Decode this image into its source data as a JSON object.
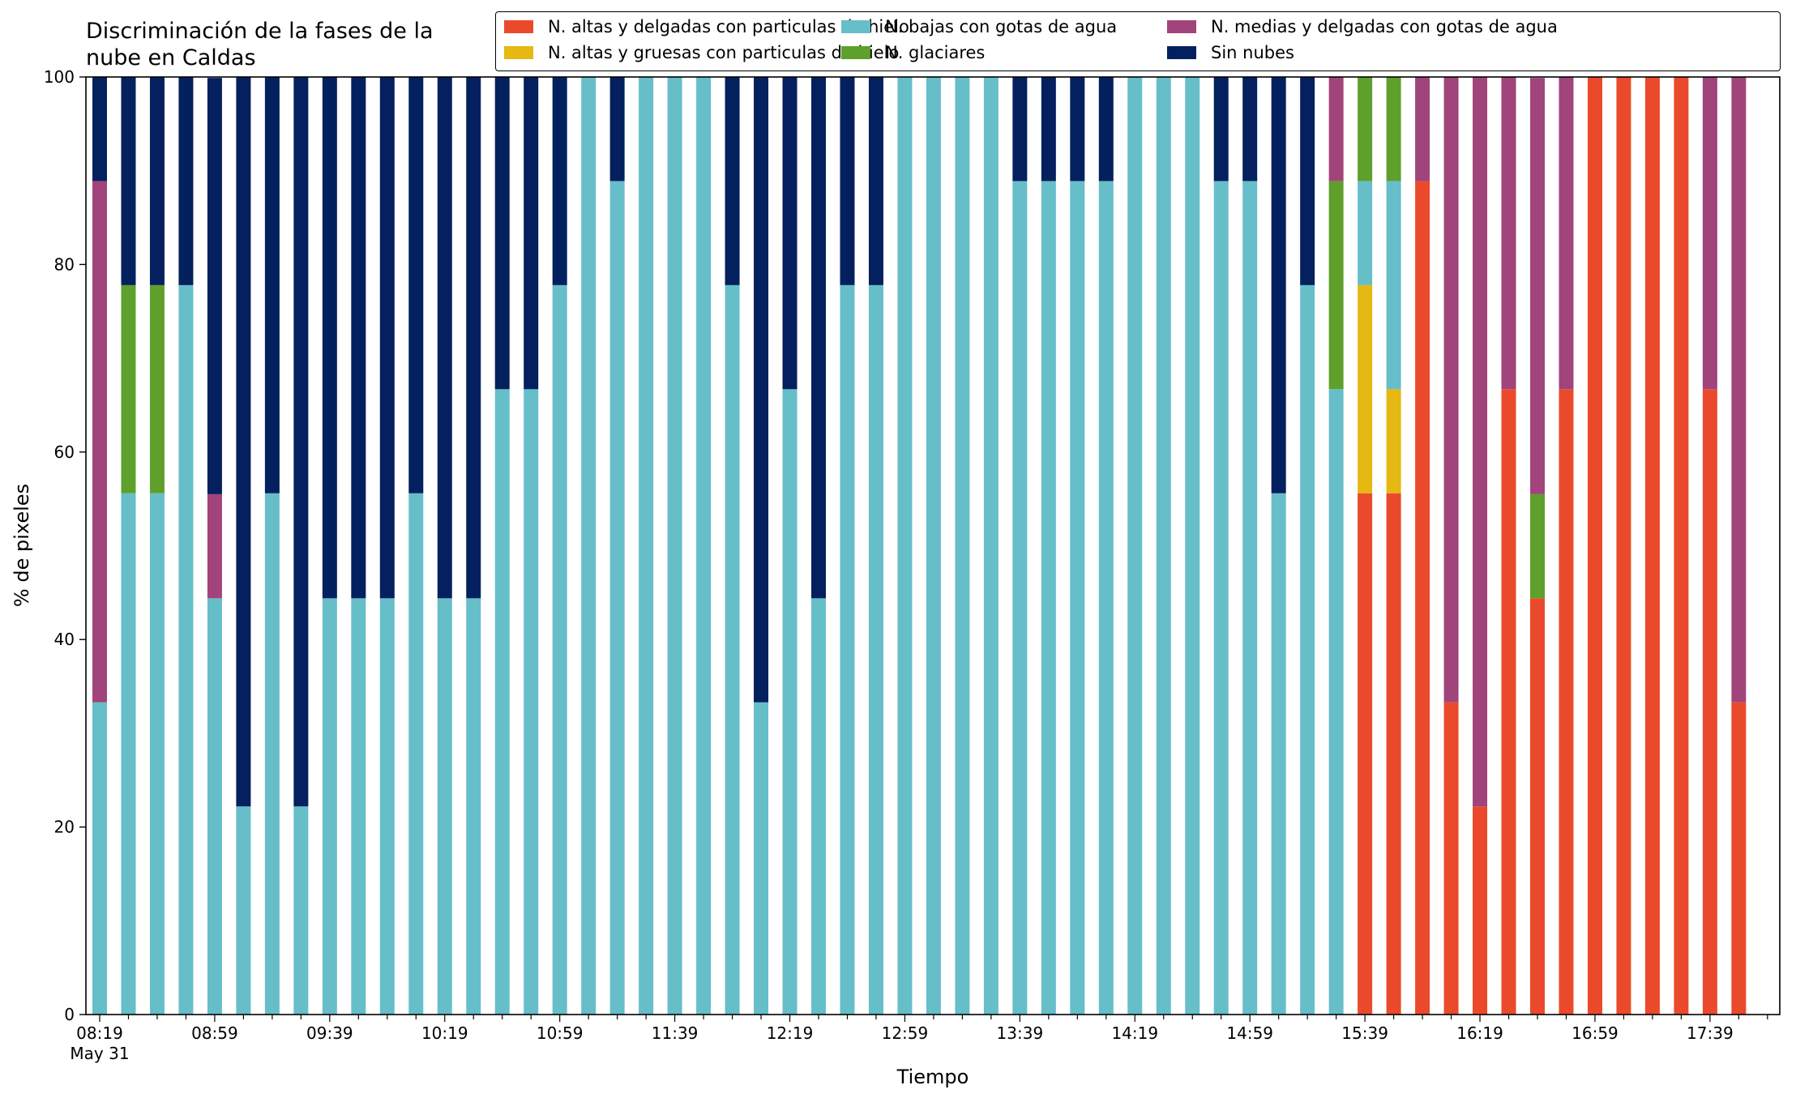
{
  "chart_data": {
    "type": "bar",
    "stacked": true,
    "title": "Discriminación de la fases de la\nnube en Caldas",
    "xlabel": "Tiempo",
    "ylabel": "% de pixeles",
    "ylim": [
      0,
      100
    ],
    "yticks": [
      0,
      20,
      40,
      60,
      80,
      100
    ],
    "xticks": [
      "08:19",
      "08:59",
      "09:39",
      "10:19",
      "10:59",
      "11:39",
      "12:19",
      "12:59",
      "13:39",
      "14:19",
      "14:59",
      "15:39",
      "16:19",
      "16:59",
      "17:39"
    ],
    "xtick_sublabel": "May 31",
    "legend_position": "top-right",
    "series": [
      {
        "name": "N. altas y delgadas con particulas de hielo",
        "color": "#ea4a2b",
        "values": [
          0,
          0,
          0,
          0,
          0,
          0,
          0,
          0,
          0,
          0,
          0,
          0,
          0,
          0,
          0,
          0,
          0,
          0,
          0,
          0,
          0,
          0,
          0,
          0,
          0,
          0,
          0,
          0,
          0,
          0,
          0,
          0,
          0,
          0,
          0,
          0,
          0,
          0,
          0,
          0,
          0,
          0,
          0,
          0,
          55.6,
          55.6,
          88.9,
          33.3,
          22.2,
          66.7,
          44.4,
          66.7,
          100,
          100,
          100,
          100,
          66.7,
          33.3
        ]
      },
      {
        "name": "N. altas y gruesas con particulas de hielo",
        "color": "#e5b812",
        "values": [
          0,
          0,
          0,
          0,
          0,
          0,
          0,
          0,
          0,
          0,
          0,
          0,
          0,
          0,
          0,
          0,
          0,
          0,
          0,
          0,
          0,
          0,
          0,
          0,
          0,
          0,
          0,
          0,
          0,
          0,
          0,
          0,
          0,
          0,
          0,
          0,
          0,
          0,
          0,
          0,
          0,
          0,
          0,
          0,
          22.2,
          11.1,
          0,
          0,
          0,
          0,
          0,
          0,
          0,
          0,
          0,
          0,
          0,
          0
        ]
      },
      {
        "name": "N. bajas con gotas de agua",
        "color": "#66bec9",
        "values": [
          33.3,
          55.6,
          55.6,
          77.8,
          44.4,
          22.2,
          55.6,
          22.2,
          44.4,
          44.4,
          44.4,
          55.6,
          44.4,
          44.4,
          66.7,
          66.7,
          77.8,
          100,
          88.9,
          100,
          100,
          100,
          77.8,
          33.3,
          66.7,
          44.4,
          77.8,
          77.8,
          100,
          100,
          100,
          100,
          88.9,
          88.9,
          88.9,
          88.9,
          100,
          100,
          100,
          88.9,
          88.9,
          55.6,
          77.8,
          66.7,
          11.1,
          22.2,
          0,
          0,
          0,
          0,
          0,
          0,
          0,
          0,
          0,
          0,
          0,
          0
        ]
      },
      {
        "name": "N. glaciares",
        "color": "#5ea02b",
        "values": [
          0,
          22.2,
          22.2,
          0,
          0,
          0,
          0,
          0,
          0,
          0,
          0,
          0,
          0,
          0,
          0,
          0,
          0,
          0,
          0,
          0,
          0,
          0,
          0,
          0,
          0,
          0,
          0,
          0,
          0,
          0,
          0,
          0,
          0,
          0,
          0,
          0,
          0,
          0,
          0,
          0,
          0,
          0,
          0,
          22.2,
          11.1,
          11.1,
          0,
          0,
          0,
          0,
          11.1,
          0,
          0,
          0,
          0,
          0,
          0,
          0
        ]
      },
      {
        "name": "N. medias y delgadas con gotas de agua",
        "color": "#a1447b",
        "values": [
          55.6,
          0,
          0,
          0,
          11.1,
          0,
          0,
          0,
          0,
          0,
          0,
          0,
          0,
          0,
          0,
          0,
          0,
          0,
          0,
          0,
          0,
          0,
          0,
          0,
          0,
          0,
          0,
          0,
          0,
          0,
          0,
          0,
          0,
          0,
          0,
          0,
          0,
          0,
          0,
          0,
          0,
          0,
          0,
          11.1,
          0,
          0,
          11.1,
          66.7,
          77.8,
          33.3,
          44.4,
          33.3,
          0,
          0,
          0,
          0,
          33.3,
          66.7
        ]
      },
      {
        "name": "Sin nubes",
        "color": "#04205e",
        "values": [
          11.1,
          22.2,
          22.2,
          22.2,
          44.4,
          77.8,
          44.4,
          77.8,
          55.6,
          55.6,
          55.6,
          44.4,
          55.6,
          55.6,
          33.3,
          33.3,
          22.2,
          0,
          11.1,
          0,
          0,
          0,
          22.2,
          66.7,
          33.3,
          55.6,
          22.2,
          22.2,
          0,
          0,
          0,
          0,
          11.1,
          11.1,
          11.1,
          11.1,
          0,
          0,
          0,
          11.1,
          11.1,
          44.4,
          22.2,
          0,
          0,
          0,
          0,
          0,
          0,
          0,
          0,
          0,
          0,
          0,
          0,
          0,
          0,
          0
        ]
      }
    ]
  }
}
